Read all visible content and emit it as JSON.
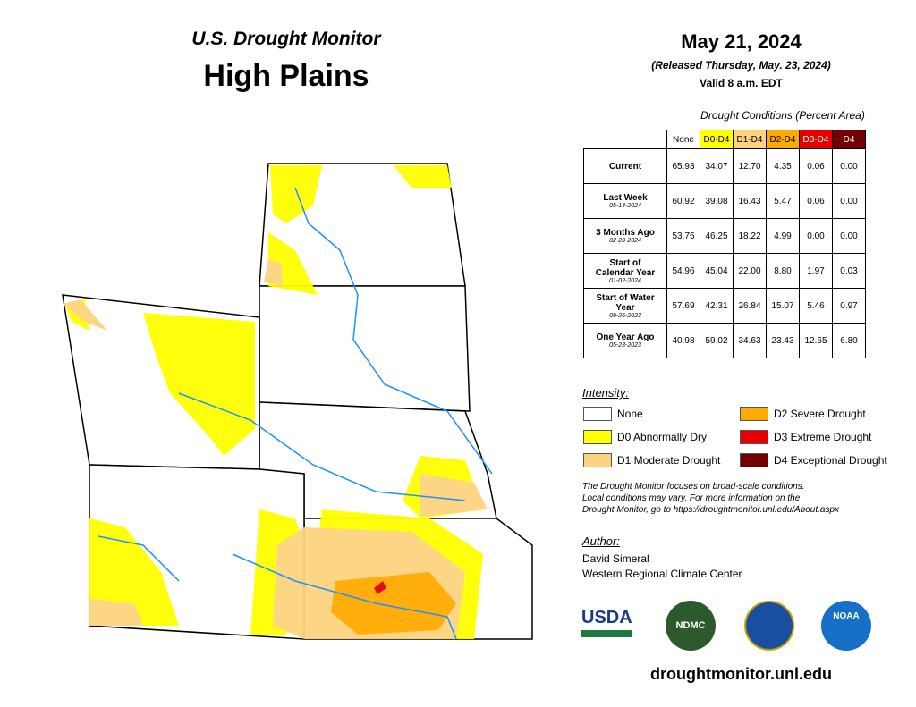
{
  "header": {
    "subtitle": "U.S. Drought Monitor",
    "title": "High Plains",
    "date": "May 21, 2024",
    "released": "(Released Thursday, May. 23, 2024)",
    "valid": "Valid 8 a.m. EDT"
  },
  "table": {
    "caption": "Drought Conditions (Percent Area)",
    "columns": [
      "None",
      "D0-D4",
      "D1-D4",
      "D2-D4",
      "D3-D4",
      "D4"
    ],
    "rows": [
      {
        "label": "Current",
        "values": [
          "65.93",
          "34.07",
          "12.70",
          "4.35",
          "0.06",
          "0.00"
        ]
      },
      {
        "label": "Last Week",
        "date": "05-14-2024",
        "values": [
          "60.92",
          "39.08",
          "16.43",
          "5.47",
          "0.06",
          "0.00"
        ]
      },
      {
        "label": "3 Months Ago",
        "date": "02-20-2024",
        "values": [
          "53.75",
          "46.25",
          "18.22",
          "4.99",
          "0.00",
          "0.00"
        ]
      },
      {
        "label": "Start of Calendar Year",
        "date": "01-02-2024",
        "values": [
          "54.96",
          "45.04",
          "22.00",
          "8.80",
          "1.97",
          "0.03"
        ]
      },
      {
        "label": "Start of Water Year",
        "date": "09-26-2023",
        "values": [
          "57.69",
          "42.31",
          "26.84",
          "15.07",
          "5.46",
          "0.97"
        ]
      },
      {
        "label": "One Year Ago",
        "date": "05-23-2023",
        "values": [
          "40.98",
          "59.02",
          "34.63",
          "23.43",
          "12.65",
          "6.80"
        ]
      }
    ]
  },
  "legend": {
    "title": "Intensity:",
    "items": [
      {
        "label": "None",
        "color": "#ffffff"
      },
      {
        "label": "D2 Severe Drought",
        "color": "#ffaa00"
      },
      {
        "label": "D0 Abnormally Dry",
        "color": "#ffff00"
      },
      {
        "label": "D3 Extreme Drought",
        "color": "#e60000"
      },
      {
        "label": "D1 Moderate Drought",
        "color": "#fcd37f"
      },
      {
        "label": "D4 Exceptional Drought",
        "color": "#730000"
      }
    ]
  },
  "note": [
    "The Drought Monitor focuses on broad-scale conditions.",
    "Local conditions may vary. For more information on the",
    "Drought Monitor, go to https://droughtmonitor.unl.edu/About.aspx"
  ],
  "author": {
    "title": "Author:",
    "lines": [
      "David Simeral",
      "Western Regional Climate Center"
    ]
  },
  "logos": [
    "USDA",
    "NDMC",
    "NOAA"
  ],
  "footer": "droughtmonitor.unl.edu"
}
